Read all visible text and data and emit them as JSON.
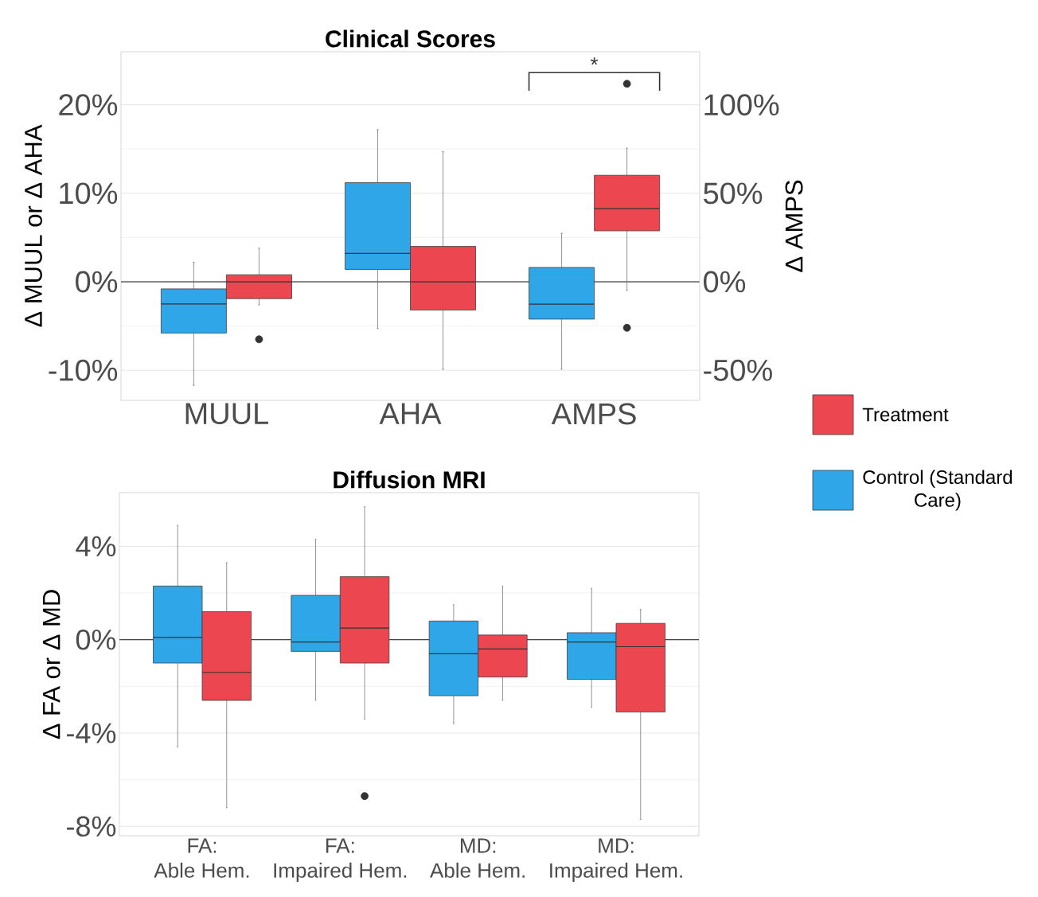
{
  "chart_data": [
    {
      "type": "box",
      "title": "Clinical Scores",
      "ylabel": "Δ MUUL or Δ AHA",
      "y2label": "Δ AMPS",
      "categories": [
        "MUUL",
        "AHA",
        "AMPS"
      ],
      "ylim": [
        -13.4,
        26
      ],
      "yticks": [
        {
          "value": -10,
          "label": "-10%"
        },
        {
          "value": 0,
          "label": "0%"
        },
        {
          "value": 10,
          "label": "10%"
        },
        {
          "value": 20,
          "label": "20%"
        }
      ],
      "y2lim": [
        -67,
        130
      ],
      "y2ticks": [
        {
          "value": -50,
          "label": "-50%"
        },
        {
          "value": 0,
          "label": "0%"
        },
        {
          "value": 50,
          "label": "50%"
        },
        {
          "value": 100,
          "label": "100%"
        }
      ],
      "grid": "y",
      "legend": "right",
      "ref_lines": [
        {
          "axis": "y",
          "value": 0
        }
      ],
      "annotations": [
        "*"
      ],
      "series": [
        {
          "name": "Control (Standard Care)",
          "color": "#2ea6e8",
          "boxes": [
            {
              "low": -11.7,
              "q1": -5.8,
              "median": -2.5,
              "q3": -0.8,
              "high": 2.2
            },
            {
              "low": -5.3,
              "q1": 1.4,
              "median": 3.2,
              "q3": 11.2,
              "high": 17.2
            },
            null
          ]
        },
        {
          "name": "Treatment",
          "color": "#ec4650",
          "boxes": [
            {
              "low": -2.6,
              "q1": -1.9,
              "median": 0,
              "q3": 0.8,
              "high": 3.8,
              "outliers": [
                -6.5
              ]
            },
            {
              "low": -9.9,
              "q1": -3.2,
              "median": 0,
              "q3": 4.0,
              "high": 14.7
            },
            null
          ]
        },
        {
          "color": "#2ea6e8",
          "axis": "y2",
          "boxes": [
            null,
            null,
            {
              "low": -49.4,
              "q1": -21.1,
              "median": -12.6,
              "q3": 8.1,
              "high": 27.4
            }
          ]
        },
        {
          "color": "#ec4650",
          "axis": "y2",
          "boxes": [
            null,
            null,
            {
              "low": -4.9,
              "q1": 28.8,
              "median": 41.3,
              "q3": 60.2,
              "high": 75.5,
              "outliers": [
                111.9,
                -26
              ]
            }
          ]
        }
      ]
    },
    {
      "type": "box",
      "title": "Diffusion MRI",
      "ylabel": "Δ FA or Δ MD",
      "categories": [
        "FA: Able Hem.",
        "FA: Impaired Hem.",
        "MD: Able Hem.",
        "MD: Impaired Hem."
      ],
      "ylim": [
        -8.4,
        6.3
      ],
      "yticks": [
        {
          "value": -8,
          "label": "-8%"
        },
        {
          "value": -4,
          "label": "-4%"
        },
        {
          "value": 0,
          "label": "0%"
        },
        {
          "value": 4,
          "label": "4%"
        }
      ],
      "grid": "y",
      "ref_lines": [
        {
          "axis": "y",
          "value": 0
        }
      ],
      "series": [
        {
          "color": "#2ea6e8",
          "boxes": [
            {
              "low": -4.6,
              "q1": -1.0,
              "median": 0.1,
              "q3": 2.3,
              "high": 4.9
            },
            {
              "low": -2.6,
              "q1": -0.5,
              "median": -0.1,
              "q3": 1.9,
              "high": 4.3
            },
            {
              "low": -3.6,
              "q1": -2.4,
              "median": -0.6,
              "q3": 0.8,
              "high": 1.5
            },
            {
              "low": -2.9,
              "q1": -1.7,
              "median": -0.1,
              "q3": 0.3,
              "high": 2.2
            }
          ]
        },
        {
          "color": "#ec4650",
          "boxes": [
            {
              "low": -7.2,
              "q1": -2.6,
              "median": -1.4,
              "q3": 1.2,
              "high": 3.3
            },
            {
              "low": -3.4,
              "q1": -1.0,
              "median": 0.5,
              "q3": 2.7,
              "high": 5.7,
              "outliers": [
                -6.7
              ]
            },
            {
              "low": -2.6,
              "q1": -1.6,
              "median": -0.4,
              "q3": 0.2,
              "high": 2.3
            },
            {
              "low": -7.7,
              "q1": -3.1,
              "median": -0.3,
              "q3": 0.7,
              "high": 1.3
            }
          ]
        }
      ]
    }
  ]
}
